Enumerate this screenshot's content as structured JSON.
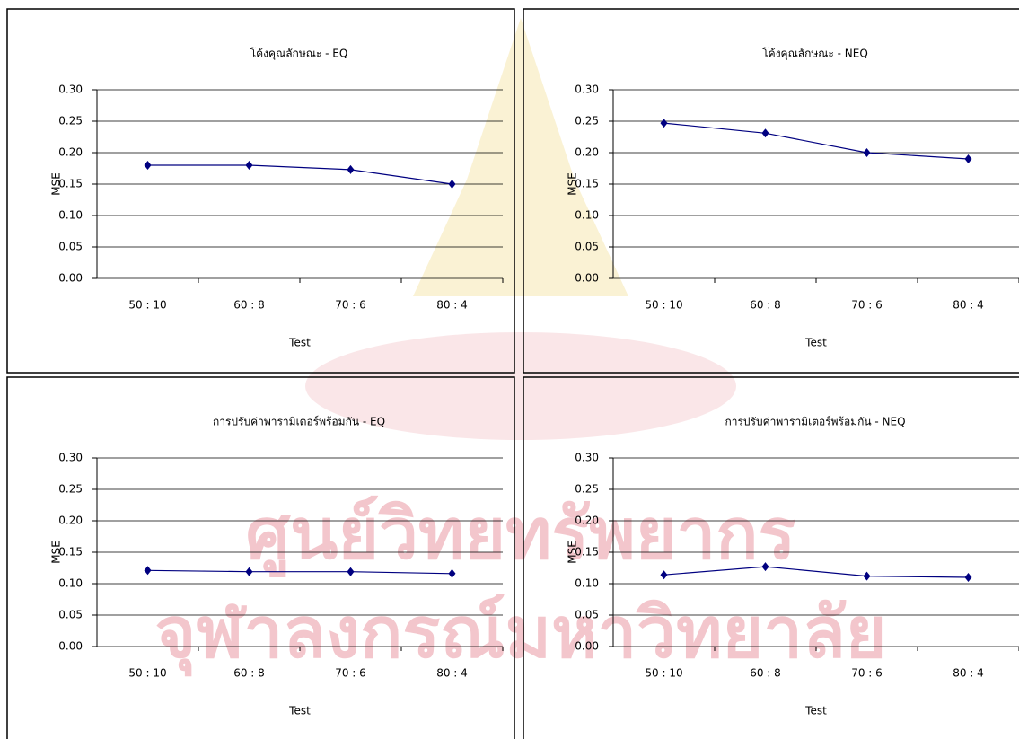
{
  "watermark": [
    "ศูนย์วิทยทรัพยากร",
    "จุฬาลงกรณ์มหาวิทยาลัย"
  ],
  "chart_data": [
    {
      "type": "line",
      "title": "โค้งคุณลักษณะ - EQ",
      "x_label": "Test",
      "y_label": "MSE",
      "categories": [
        "50 : 10",
        "60 : 8",
        "70 : 6",
        "80 : 4"
      ],
      "series": [
        {
          "color": "#000080",
          "values": [
            0.18,
            0.18,
            0.173,
            0.15
          ]
        }
      ],
      "ylim": [
        0,
        0.3
      ],
      "yticks": [
        {
          "value": 0,
          "label": "0.00"
        },
        {
          "value": 0.05,
          "label": "0.05"
        },
        {
          "value": 0.1,
          "label": "0.10"
        },
        {
          "value": 0.15,
          "label": "0.15"
        },
        {
          "value": 0.2,
          "label": "0.20"
        },
        {
          "value": 0.25,
          "label": "0.25"
        },
        {
          "value": 0.3,
          "label": "0.30"
        }
      ],
      "grid": true
    },
    {
      "type": "line",
      "title": "โค้งคุณลักษณะ - NEQ",
      "x_label": "Test",
      "y_label": "MSE",
      "categories": [
        "50 : 10",
        "60 : 8",
        "70 : 6",
        "80 : 4"
      ],
      "series": [
        {
          "color": "#000080",
          "values": [
            0.247,
            0.231,
            0.2,
            0.19
          ]
        }
      ],
      "ylim": [
        0,
        0.3
      ],
      "yticks": [
        {
          "value": 0,
          "label": "0.00"
        },
        {
          "value": 0.05,
          "label": "0.05"
        },
        {
          "value": 0.1,
          "label": "0.10"
        },
        {
          "value": 0.15,
          "label": "0.15"
        },
        {
          "value": 0.2,
          "label": "0.20"
        },
        {
          "value": 0.25,
          "label": "0.25"
        },
        {
          "value": 0.3,
          "label": "0.30"
        }
      ],
      "grid": true
    },
    {
      "type": "line",
      "title": "การปรับค่าพารามิเตอร์พร้อมกัน - EQ",
      "x_label": "Test",
      "y_label": "MSE",
      "categories": [
        "50 : 10",
        "60 : 8",
        "70 : 6",
        "80 : 4"
      ],
      "series": [
        {
          "color": "#000080",
          "values": [
            0.121,
            0.119,
            0.119,
            0.116
          ]
        }
      ],
      "ylim": [
        0,
        0.3
      ],
      "yticks": [
        {
          "value": 0,
          "label": "0.00"
        },
        {
          "value": 0.05,
          "label": "0.05"
        },
        {
          "value": 0.1,
          "label": "0.10"
        },
        {
          "value": 0.15,
          "label": "0.15"
        },
        {
          "value": 0.2,
          "label": "0.20"
        },
        {
          "value": 0.25,
          "label": "0.25"
        },
        {
          "value": 0.3,
          "label": "0.30"
        }
      ],
      "grid": true
    },
    {
      "type": "line",
      "title": "การปรับค่าพารามิเตอร์พร้อมกัน - NEQ",
      "x_label": "Test",
      "y_label": "MSE",
      "categories": [
        "50 : 10",
        "60 : 8",
        "70 : 6",
        "80 : 4"
      ],
      "series": [
        {
          "color": "#000080",
          "values": [
            0.114,
            0.127,
            0.112,
            0.11
          ]
        }
      ],
      "ylim": [
        0,
        0.3
      ],
      "yticks": [
        {
          "value": 0,
          "label": "0.00"
        },
        {
          "value": 0.05,
          "label": "0.05"
        },
        {
          "value": 0.1,
          "label": "0.10"
        },
        {
          "value": 0.15,
          "label": "0.15"
        },
        {
          "value": 0.2,
          "label": "0.20"
        },
        {
          "value": 0.25,
          "label": "0.25"
        },
        {
          "value": 0.3,
          "label": "0.30"
        }
      ],
      "grid": true
    }
  ]
}
